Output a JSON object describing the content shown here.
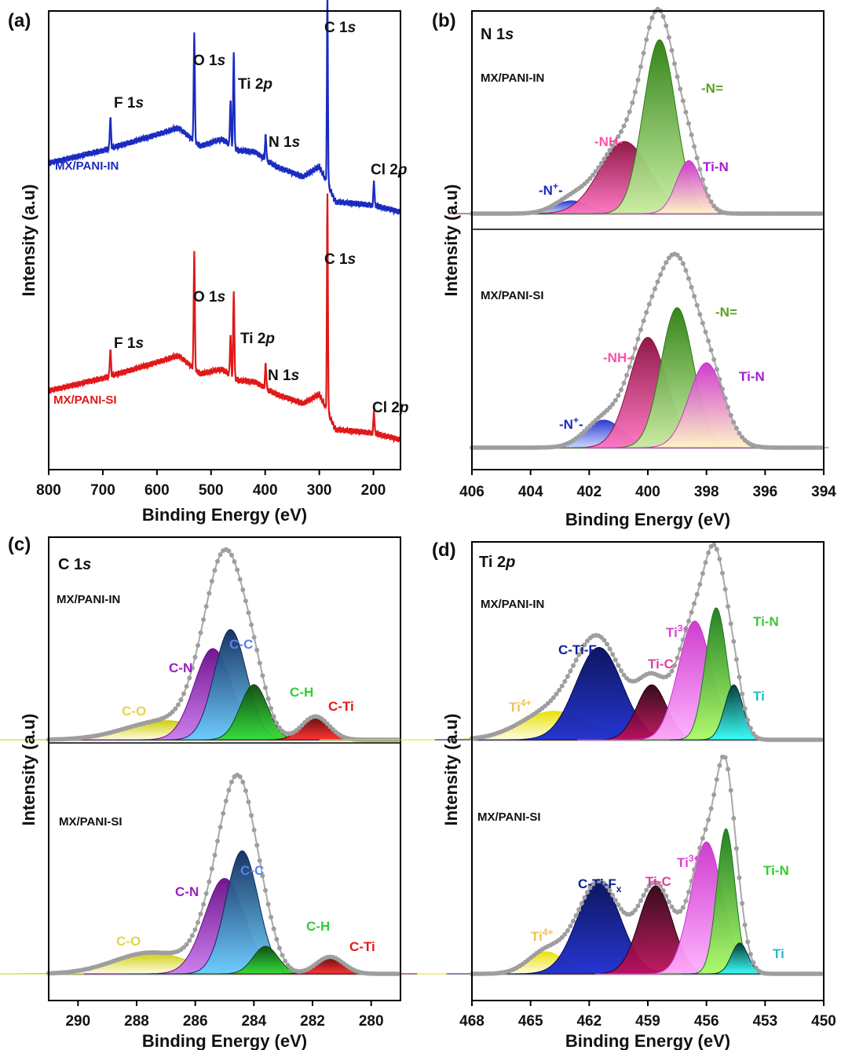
{
  "colors": {
    "envelope": "#9e9e9e",
    "in_survey": "#1a2bc0",
    "si_survey": "#e01818"
  },
  "panels": [
    {
      "id": "a",
      "tag": "(a)",
      "title": "",
      "xlabel": "Binding Energy (eV)",
      "ylabel": "Intensity (a.u)",
      "xlim": [
        800,
        150
      ],
      "ticks": [
        "800",
        "700",
        "600",
        "500",
        "400",
        "300",
        "200"
      ],
      "tick_values": [
        800,
        700,
        600,
        500,
        400,
        300,
        200
      ]
    },
    {
      "id": "b",
      "tag": "(b)",
      "title": "N 1s",
      "title_main": "N 1",
      "title_italic": "s",
      "xlabel": "Binding Energy (eV)",
      "ylabel": "Intensity (a.u)",
      "xlim": [
        406,
        394
      ],
      "ticks": [
        "406",
        "404",
        "402",
        "400",
        "398",
        "396",
        "394"
      ],
      "tick_values": [
        406,
        404,
        402,
        400,
        398,
        396,
        394
      ]
    },
    {
      "id": "c",
      "tag": "(c)",
      "title": "C 1s",
      "title_main": "C 1",
      "title_italic": "s",
      "xlabel": "Binding Energy (eV)",
      "ylabel": "Intensity (a.u)",
      "xlim": [
        291,
        279
      ],
      "ticks": [
        "290",
        "288",
        "286",
        "284",
        "282",
        "280"
      ],
      "tick_values": [
        290,
        288,
        286,
        284,
        282,
        280
      ]
    },
    {
      "id": "d",
      "tag": "(d)",
      "title": "Ti 2p",
      "title_main": "Ti 2",
      "title_italic": "p",
      "xlabel": "Binding Energy (eV)",
      "ylabel": "Intensity (a.u)",
      "xlim": [
        468,
        450
      ],
      "ticks": [
        "468",
        "465",
        "462",
        "459",
        "456",
        "453",
        "450"
      ],
      "tick_values": [
        468,
        465,
        462,
        459,
        456,
        453,
        450
      ]
    }
  ],
  "chart_data": [
    {
      "type": "line",
      "panel": "a",
      "title": "",
      "xlabel": "Binding Energy (eV)",
      "ylabel": "Intensity (a.u)",
      "xlim": [
        800,
        150
      ],
      "series": [
        {
          "name": "MX/PANI-IN",
          "color": "#1a2bc0",
          "baseline": [
            [
              800,
              0.215
            ],
            [
              700,
              0.27
            ],
            [
              600,
              0.34
            ],
            [
              560,
              0.37
            ],
            [
              520,
              0.29
            ],
            [
              480,
              0.32
            ],
            [
              450,
              0.27
            ],
            [
              420,
              0.265
            ],
            [
              380,
              0.2
            ],
            [
              330,
              0.155
            ],
            [
              300,
              0.2
            ],
            [
              286,
              0.13
            ],
            [
              270,
              0.045
            ],
            [
              200,
              0.03
            ],
            [
              150,
              0.0
            ]
          ],
          "peaks": [
            {
              "label": "F 1s",
              "x": 686,
              "height": 0.14,
              "width": 2.5
            },
            {
              "label": "O 1s",
              "x": 531,
              "height": 0.48,
              "width": 2.5
            },
            {
              "label": "Ti 2p",
              "x": 458,
              "height": 0.42,
              "width": 2.5
            },
            {
              "label": "Ti 2p",
              "x": 464,
              "height": 0.2,
              "width": 2.5
            },
            {
              "label": "N 1s",
              "x": 399,
              "height": 0.11,
              "width": 2.5
            },
            {
              "label": "C 1s",
              "x": 285,
              "height": 0.82,
              "width": 2.2
            },
            {
              "label": "Cl 2p",
              "x": 199,
              "height": 0.11,
              "width": 2.2
            }
          ]
        },
        {
          "name": "MX/PANI-SI",
          "color": "#e01818",
          "baseline": [
            [
              800,
              0.215
            ],
            [
              700,
              0.27
            ],
            [
              600,
              0.34
            ],
            [
              560,
              0.37
            ],
            [
              520,
              0.29
            ],
            [
              480,
              0.31
            ],
            [
              450,
              0.26
            ],
            [
              420,
              0.255
            ],
            [
              380,
              0.2
            ],
            [
              330,
              0.16
            ],
            [
              300,
              0.2
            ],
            [
              286,
              0.13
            ],
            [
              270,
              0.045
            ],
            [
              200,
              0.03
            ],
            [
              150,
              0.0
            ]
          ],
          "peaks": [
            {
              "label": "F 1s",
              "x": 686,
              "height": 0.12,
              "width": 2.5
            },
            {
              "label": "O 1s",
              "x": 531,
              "height": 0.52,
              "width": 2.5
            },
            {
              "label": "Ti 2p",
              "x": 458,
              "height": 0.38,
              "width": 2.5
            },
            {
              "label": "Ti 2p",
              "x": 464,
              "height": 0.18,
              "width": 2.5
            },
            {
              "label": "N 1s",
              "x": 399,
              "height": 0.11,
              "width": 2.5
            },
            {
              "label": "C 1s",
              "x": 285,
              "height": 0.95,
              "width": 2.2
            },
            {
              "label": "Cl 2p",
              "x": 199,
              "height": 0.1,
              "width": 2.2
            }
          ]
        }
      ],
      "annotations": {
        "MX/PANI-IN": [
          {
            "text": "O 1s",
            "main": "O 1",
            "italic": "s"
          },
          {
            "text": "Ti 2p",
            "main": "Ti 2",
            "italic": "p"
          },
          {
            "text": "F 1s",
            "main": "F 1",
            "italic": "s"
          },
          {
            "text": "N 1s",
            "main": "N 1",
            "italic": "s"
          },
          {
            "text": "C 1s",
            "main": "C 1",
            "italic": "s"
          },
          {
            "text": "Cl 2p",
            "main": "Cl 2",
            "italic": "p"
          }
        ],
        "MX/PANI-SI": [
          {
            "text": "O 1s",
            "main": "O 1",
            "italic": "s"
          },
          {
            "text": "Ti 2p",
            "main": "Ti 2",
            "italic": "p"
          },
          {
            "text": "F 1s",
            "main": "F 1",
            "italic": "s"
          },
          {
            "text": "N 1s",
            "main": "N 1",
            "italic": "s"
          },
          {
            "text": "C 1s",
            "main": "C 1",
            "italic": "s"
          },
          {
            "text": "Cl 2p",
            "main": "Cl 2",
            "italic": "p"
          }
        ]
      }
    },
    {
      "type": "area",
      "panel": "b",
      "title": "N 1s",
      "xlabel": "Binding Energy (eV)",
      "ylabel": "Intensity (a.u)",
      "xlim": [
        406,
        394
      ],
      "samples": [
        {
          "name": "MX/PANI-IN",
          "components": [
            {
              "label": "-N⁺-",
              "label_main": "-N",
              "label_sup": "+",
              "label_end": "-",
              "center": 402.6,
              "height": 0.06,
              "fwhm": 1.4,
              "color": "#2233cc",
              "light": "#c8d4ff",
              "label_color": "#1a2bc0"
            },
            {
              "label": "-NH-",
              "center": 400.8,
              "height": 0.34,
              "fwhm": 2.0,
              "color": "#8a0e3e",
              "light": "#ff73c2",
              "label_color": "#ff4fa8"
            },
            {
              "label": "-N=",
              "center": 399.6,
              "height": 0.82,
              "fwhm": 1.3,
              "color": "#2b7d0f",
              "light": "#c9f2a2",
              "label_color": "#5ba01e"
            },
            {
              "label": "Ti-N",
              "center": 398.6,
              "height": 0.25,
              "fwhm": 1.0,
              "color": "#cc33cc",
              "light": "#fff4c7",
              "label_color": "#a11fcc"
            }
          ]
        },
        {
          "name": "MX/PANI-SI",
          "components": [
            {
              "label": "-N⁺-",
              "label_main": "-N",
              "label_sup": "+",
              "label_end": "-",
              "center": 401.5,
              "height": 0.13,
              "fwhm": 1.5,
              "color": "#2233cc",
              "light": "#c8d4ff",
              "label_color": "#1a2bc0"
            },
            {
              "label": "-NH-",
              "center": 400.0,
              "height": 0.52,
              "fwhm": 1.5,
              "color": "#8a0e3e",
              "light": "#ff73c2",
              "label_color": "#ff4fa8"
            },
            {
              "label": "-N=",
              "center": 399.0,
              "height": 0.66,
              "fwhm": 1.3,
              "color": "#2b7d0f",
              "light": "#c9f2a2",
              "label_color": "#5ba01e"
            },
            {
              "label": "Ti-N",
              "center": 398.0,
              "height": 0.4,
              "fwhm": 1.4,
              "color": "#cc33cc",
              "light": "#fff4c7",
              "label_color": "#a11fcc"
            }
          ]
        }
      ]
    },
    {
      "type": "area",
      "panel": "c",
      "title": "C 1s",
      "xlabel": "Binding Energy (eV)",
      "ylabel": "Intensity (a.u)",
      "xlim": [
        291,
        279
      ],
      "samples": [
        {
          "name": "MX/PANI-IN",
          "components": [
            {
              "label": "C-O",
              "center": 287.0,
              "height": 0.09,
              "fwhm": 3.2,
              "color": "#cccc00",
              "light": "#fffde0",
              "label_color": "#e6d44a"
            },
            {
              "label": "C-N",
              "center": 285.4,
              "height": 0.43,
              "fwhm": 1.5,
              "color": "#6a0a8a",
              "light": "#ca7af0",
              "label_color": "#9a1fc0"
            },
            {
              "label": "C-C",
              "center": 284.8,
              "height": 0.52,
              "fwhm": 1.3,
              "color": "#0d2a5a",
              "light": "#6ad0ff",
              "label_color": "#5b7ff0"
            },
            {
              "label": "C-H",
              "center": 284.0,
              "height": 0.26,
              "fwhm": 1.1,
              "color": "#0a4a0a",
              "light": "#33dd33",
              "label_color": "#33cc33"
            },
            {
              "label": "C-Ti",
              "center": 281.9,
              "height": 0.11,
              "fwhm": 1.1,
              "color": "#5a0000",
              "light": "#ff2a2a",
              "label_color": "#e01818"
            }
          ]
        },
        {
          "name": "MX/PANI-SI",
          "components": [
            {
              "label": "C-O",
              "center": 287.5,
              "height": 0.1,
              "fwhm": 3.0,
              "color": "#cccc00",
              "light": "#fffde0",
              "label_color": "#e6d44a"
            },
            {
              "label": "C-N",
              "center": 285.0,
              "height": 0.45,
              "fwhm": 1.6,
              "color": "#6a0a8a",
              "light": "#ca7af0",
              "label_color": "#9a1fc0"
            },
            {
              "label": "C-C",
              "center": 284.4,
              "height": 0.58,
              "fwhm": 1.3,
              "color": "#0d2a5a",
              "light": "#6ad0ff",
              "label_color": "#5b7ff0"
            },
            {
              "label": "C-H",
              "center": 283.6,
              "height": 0.13,
              "fwhm": 1.0,
              "color": "#0a4a0a",
              "light": "#33dd33",
              "label_color": "#33cc33"
            },
            {
              "label": "C-Ti",
              "center": 281.4,
              "height": 0.08,
              "fwhm": 1.1,
              "color": "#5a0000",
              "light": "#ff2a2a",
              "label_color": "#e01818"
            }
          ]
        }
      ]
    },
    {
      "type": "area",
      "panel": "d",
      "title": "Ti 2p",
      "xlabel": "Binding Energy (eV)",
      "ylabel": "Intensity (a.u)",
      "xlim": [
        468,
        450
      ],
      "samples": [
        {
          "name": "MX/PANI-IN",
          "components": [
            {
              "label": "Ti⁴⁺",
              "label_main": "Ti",
              "label_sup": "4+",
              "center": 463.8,
              "height": 0.13,
              "fwhm": 4.0,
              "color": "#e8e000",
              "light": "#fffce0",
              "label_color": "#f0c05a"
            },
            {
              "label": "C-Ti-Fₓ",
              "label_main": "C-Ti-F",
              "label_sub": "x",
              "center": 461.5,
              "height": 0.42,
              "fwhm": 2.8,
              "color": "#000a55",
              "light": "#1a2bd0",
              "label_color": "#0d1b9a"
            },
            {
              "label": "Ti-C",
              "center": 458.8,
              "height": 0.25,
              "fwhm": 1.8,
              "color": "#2a0010",
              "light": "#c0105a",
              "label_color": "#e040a0"
            },
            {
              "label": "Ti³⁺",
              "label_main": "Ti",
              "label_sup": "3+",
              "center": 456.6,
              "height": 0.54,
              "fwhm": 2.0,
              "color": "#cc33cc",
              "light": "#ffb0ff",
              "label_color": "#e040e0"
            },
            {
              "label": "Ti-N",
              "center": 455.5,
              "height": 0.6,
              "fwhm": 1.3,
              "color": "#1a7a1a",
              "light": "#aaff66",
              "label_color": "#33cc33"
            },
            {
              "label": "Ti",
              "center": 454.6,
              "height": 0.25,
              "fwhm": 1.1,
              "color": "#003333",
              "light": "#33ffff",
              "label_color": "#22bbcc"
            }
          ]
        },
        {
          "name": "MX/PANI-SI",
          "components": [
            {
              "label": "Ti⁴⁺",
              "label_main": "Ti",
              "label_sup": "4+",
              "center": 464.2,
              "height": 0.1,
              "fwhm": 2.2,
              "color": "#e8e000",
              "light": "#fffce0",
              "label_color": "#f0c05a"
            },
            {
              "label": "C-Ti-Fₓ",
              "label_main": "C-Ti-F",
              "label_sub": "x",
              "center": 461.5,
              "height": 0.42,
              "fwhm": 2.6,
              "color": "#000a55",
              "light": "#1a2bd0",
              "label_color": "#0d1b9a"
            },
            {
              "label": "Ti-C",
              "center": 458.6,
              "height": 0.4,
              "fwhm": 2.0,
              "color": "#2a0010",
              "light": "#c0105a",
              "label_color": "#e040a0"
            },
            {
              "label": "Ti³⁺",
              "label_main": "Ti",
              "label_sup": "3+",
              "center": 456.0,
              "height": 0.6,
              "fwhm": 1.9,
              "color": "#cc33cc",
              "light": "#ffb0ff",
              "label_color": "#e040e0"
            },
            {
              "label": "Ti-N",
              "center": 455.0,
              "height": 0.66,
              "fwhm": 1.1,
              "color": "#1a7a1a",
              "light": "#aaff66",
              "label_color": "#33cc33"
            },
            {
              "label": "Ti",
              "center": 454.3,
              "height": 0.14,
              "fwhm": 1.0,
              "color": "#003333",
              "light": "#33ffff",
              "label_color": "#22bbcc"
            }
          ]
        }
      ]
    }
  ]
}
